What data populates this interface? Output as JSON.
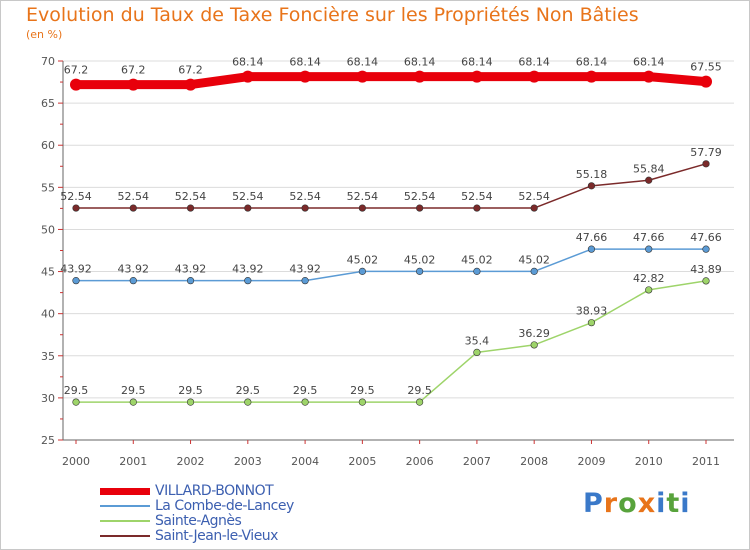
{
  "chart_data": {
    "type": "line",
    "title": "Evolution du Taux de Taxe Foncière sur les Propriétés Non Bâties",
    "ylabel": "(en %)",
    "xlabel": "",
    "categories": [
      "2000",
      "2001",
      "2002",
      "2003",
      "2004",
      "2005",
      "2006",
      "2007",
      "2008",
      "2009",
      "2010",
      "2011"
    ],
    "ylim": [
      25,
      70
    ],
    "yticks": [
      25,
      30,
      35,
      40,
      45,
      50,
      55,
      60,
      65,
      70
    ],
    "series": [
      {
        "name": "VILLARD-BONNOT",
        "color": "#e8000b",
        "values": [
          67.2,
          67.2,
          67.2,
          68.14,
          68.14,
          68.14,
          68.14,
          68.14,
          68.14,
          68.14,
          68.14,
          67.55
        ],
        "labels": [
          "67.2",
          "67.2",
          "67.2",
          "68.14",
          "68.14",
          "68.14",
          "68.14",
          "68.14",
          "68.14",
          "68.14",
          "68.14",
          "67.55"
        ]
      },
      {
        "name": "La Combe-de-Lancey",
        "color": "#5b9bd5",
        "values": [
          43.92,
          43.92,
          43.92,
          43.92,
          43.92,
          45.02,
          45.02,
          45.02,
          45.02,
          47.66,
          47.66,
          47.66
        ],
        "labels": [
          "43.92",
          "43.92",
          "43.92",
          "43.92",
          "43.92",
          "45.02",
          "45.02",
          "45.02",
          "45.02",
          "47.66",
          "47.66",
          "47.66"
        ]
      },
      {
        "name": "Sainte-Agnès",
        "color": "#9ed46a",
        "values": [
          29.5,
          29.5,
          29.5,
          29.5,
          29.5,
          29.5,
          29.5,
          35.4,
          36.29,
          38.93,
          42.82,
          43.89
        ],
        "labels": [
          "29.5",
          "29.5",
          "29.5",
          "29.5",
          "29.5",
          "29.5",
          "29.5",
          "35.4",
          "36.29",
          "38.93",
          "42.82",
          "43.89"
        ]
      },
      {
        "name": "Saint-Jean-le-Vieux",
        "color": "#7b2a2a",
        "values": [
          52.54,
          52.54,
          52.54,
          52.54,
          52.54,
          52.54,
          52.54,
          52.54,
          52.54,
          55.18,
          55.84,
          57.79
        ],
        "labels": [
          "52.54",
          "52.54",
          "52.54",
          "52.54",
          "52.54",
          "52.54",
          "52.54",
          "52.54",
          "52.54",
          "55.18",
          "55.84",
          "57.79"
        ]
      }
    ]
  },
  "logo": {
    "letters": [
      "P",
      "r",
      "o",
      "x",
      "i",
      "t",
      "i"
    ]
  }
}
